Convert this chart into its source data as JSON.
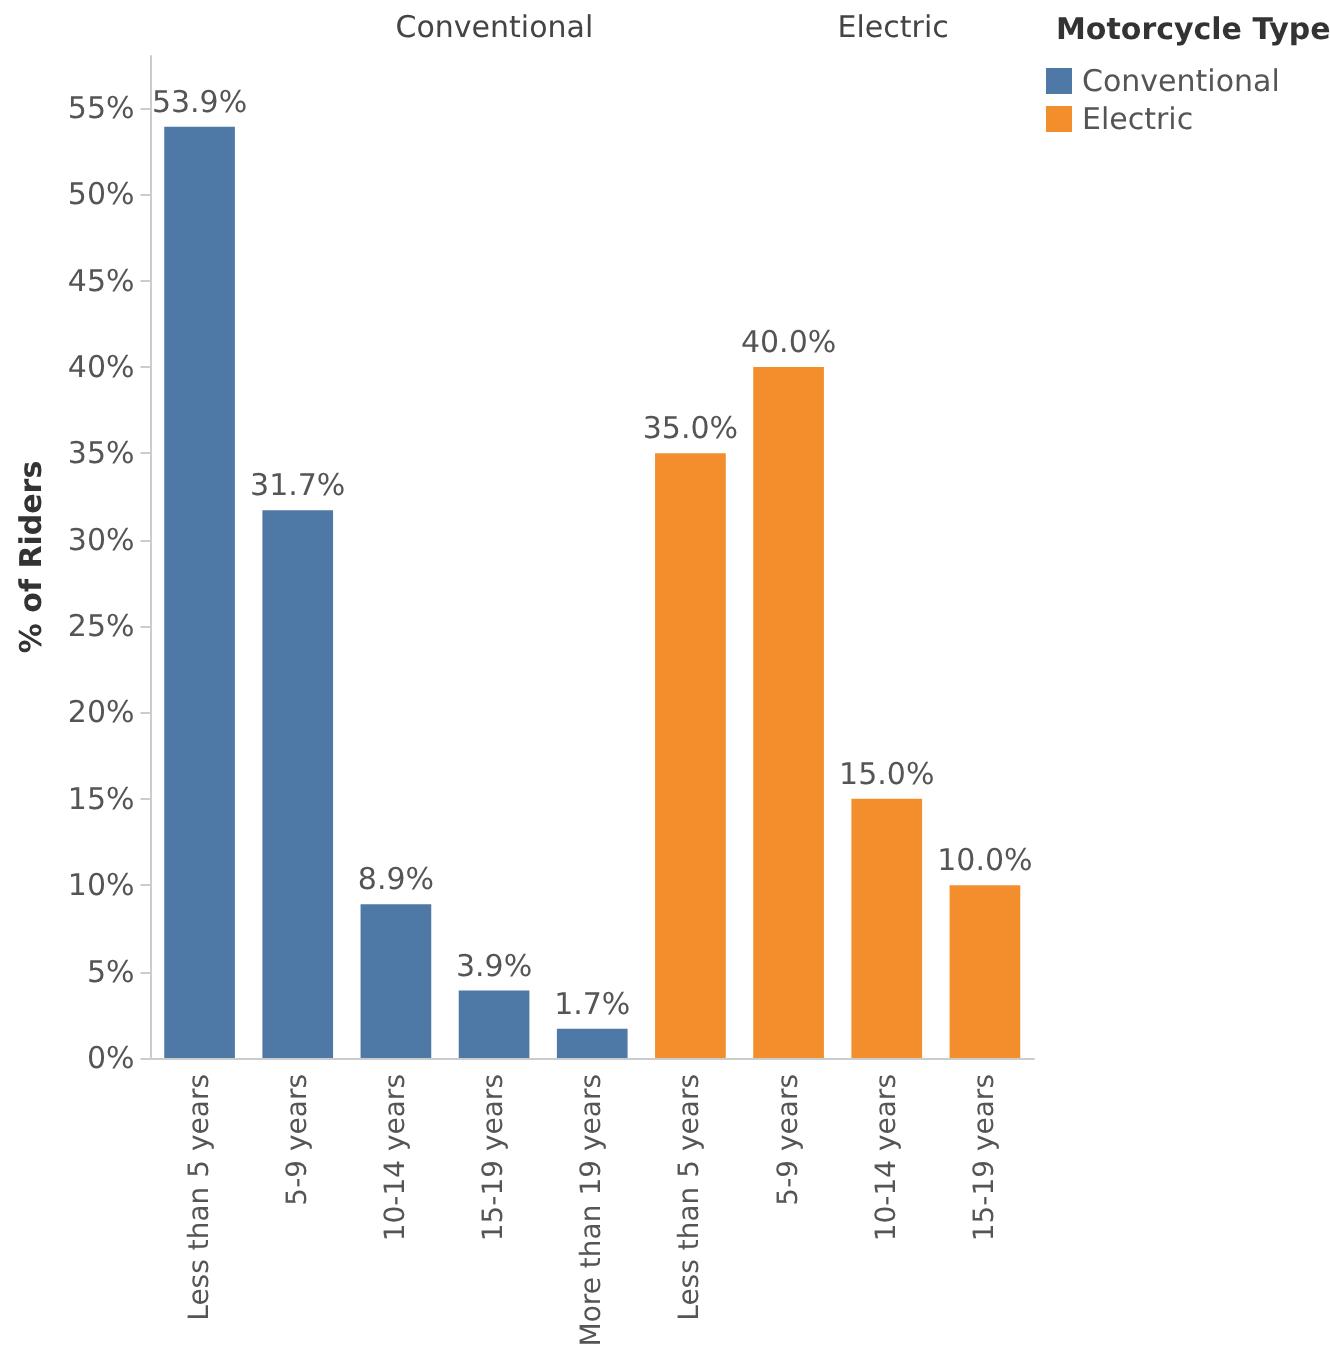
{
  "chart_data": {
    "type": "bar",
    "ylabel": "% of Riders",
    "legend_title": "Motorcycle Type",
    "legend": "right",
    "annotations": [
      "Conventional",
      "Electric"
    ],
    "categories": [
      "Less than 5 years",
      "5-9 years",
      "10-14 years",
      "15-19 years",
      "More than 19 years",
      "Less than 5 years",
      "5-9 years",
      "10-14 years",
      "15-19 years"
    ],
    "series": [
      {
        "name": "Conventional",
        "color": "#4e79a7",
        "values": [
          53.9,
          31.7,
          8.9,
          3.9,
          1.7,
          null,
          null,
          null,
          null
        ],
        "value_labels": [
          "53.9%",
          "31.7%",
          "8.9%",
          "3.9%",
          "1.7%",
          null,
          null,
          null,
          null
        ]
      },
      {
        "name": "Electric",
        "color": "#f28e2b",
        "values": [
          null,
          null,
          null,
          null,
          null,
          35.0,
          40.0,
          15.0,
          10.0
        ],
        "value_labels": [
          null,
          null,
          null,
          null,
          null,
          "35.0%",
          "40.0%",
          "15.0%",
          "10.0%"
        ]
      }
    ],
    "ylim": [
      0,
      58
    ],
    "yticks": [
      {
        "value": 0,
        "label": "0%"
      },
      {
        "value": 5,
        "label": "5%"
      },
      {
        "value": 10,
        "label": "10%"
      },
      {
        "value": 15,
        "label": "15%"
      },
      {
        "value": 20,
        "label": "20%"
      },
      {
        "value": 25,
        "label": "25%"
      },
      {
        "value": 30,
        "label": "30%"
      },
      {
        "value": 35,
        "label": "35%"
      },
      {
        "value": 40,
        "label": "40%"
      },
      {
        "value": 45,
        "label": "45%"
      },
      {
        "value": 50,
        "label": "50%"
      },
      {
        "value": 55,
        "label": "55%"
      }
    ]
  }
}
